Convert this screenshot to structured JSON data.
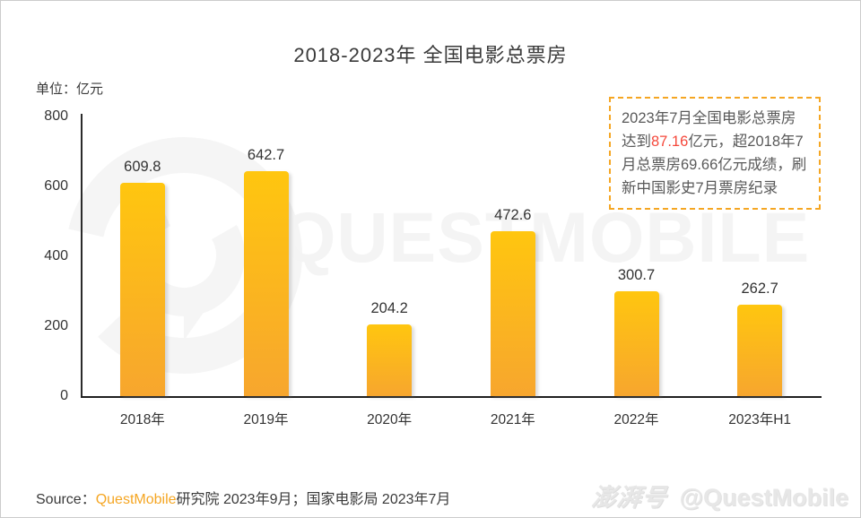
{
  "title": "2018-2023年 全国电影总票房",
  "unit_label": "单位：亿元",
  "annotation": {
    "text_before": "2023年7月全国电影总票房达到",
    "highlight": "87.16",
    "text_after": "亿元，超2018年7月总票房69.66亿元成绩，刷新中国影史7月票房纪录"
  },
  "chart_data": {
    "type": "bar",
    "categories": [
      "2018年",
      "2019年",
      "2020年",
      "2021年",
      "2022年",
      "2023年H1"
    ],
    "values": [
      609.8,
      642.7,
      204.2,
      472.6,
      300.7,
      262.7
    ],
    "title": "2018-2023年 全国电影总票房",
    "xlabel": "",
    "ylabel": "亿元",
    "ylim": [
      0,
      800
    ],
    "yticks": [
      0,
      200,
      400,
      600,
      800
    ],
    "grid": false,
    "legend": "none",
    "value_labels": true
  },
  "source": {
    "prefix": "Source：",
    "brand": "QuestMobile",
    "suffix": "研究院 2023年9月；国家电影局 2023年7月"
  },
  "watermark": {
    "text": "QUESTMOBILE",
    "footer_logo": "澎湃号",
    "footer_handle": "@QuestMobile"
  },
  "colors": {
    "accent_orange": "#F5A623",
    "highlight_red": "#F5483B",
    "bar_top": "#FFC60F",
    "bar_bottom": "#F7A62E",
    "text_dark": "#333333",
    "text_gray": "#595959",
    "watermark_gray": "#F4F4F4"
  }
}
